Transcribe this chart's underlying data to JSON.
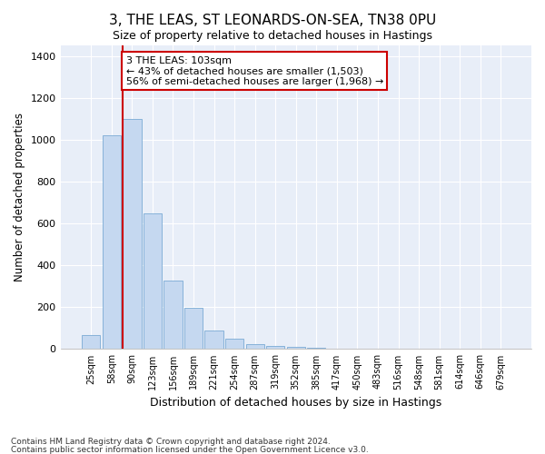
{
  "title": "3, THE LEAS, ST LEONARDS-ON-SEA, TN38 0PU",
  "subtitle": "Size of property relative to detached houses in Hastings",
  "xlabel": "Distribution of detached houses by size in Hastings",
  "ylabel": "Number of detached properties",
  "bar_color": "#c5d8f0",
  "bar_edge_color": "#7aabd4",
  "bar_categories": [
    "25sqm",
    "58sqm",
    "90sqm",
    "123sqm",
    "156sqm",
    "189sqm",
    "221sqm",
    "254sqm",
    "287sqm",
    "319sqm",
    "352sqm",
    "385sqm",
    "417sqm",
    "450sqm",
    "483sqm",
    "516sqm",
    "548sqm",
    "581sqm",
    "614sqm",
    "646sqm",
    "679sqm"
  ],
  "bar_values": [
    65,
    1020,
    1100,
    650,
    325,
    195,
    90,
    50,
    25,
    15,
    10,
    5,
    3,
    1,
    1,
    0,
    0,
    0,
    0,
    0,
    0
  ],
  "red_line_x": 2.0,
  "annotation_line1": "3 THE LEAS: 103sqm",
  "annotation_line2": "← 43% of detached houses are smaller (1,503)",
  "annotation_line3": "56% of semi-detached houses are larger (1,968) →",
  "annotation_box_color": "#ffffff",
  "annotation_box_edge": "#cc0000",
  "red_line_color": "#cc0000",
  "ylim": [
    0,
    1450
  ],
  "yticks": [
    0,
    200,
    400,
    600,
    800,
    1000,
    1200,
    1400
  ],
  "bg_color": "#e8eef8",
  "footnote1": "Contains HM Land Registry data © Crown copyright and database right 2024.",
  "footnote2": "Contains public sector information licensed under the Open Government Licence v3.0."
}
